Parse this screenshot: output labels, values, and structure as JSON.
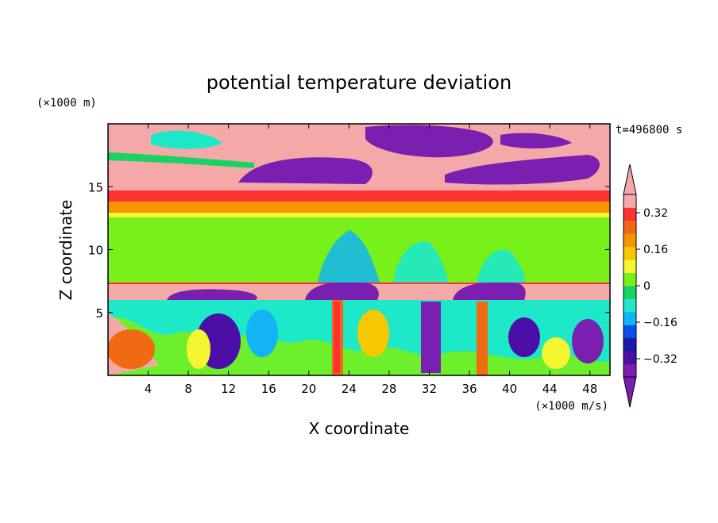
{
  "chart_data": {
    "type": "heatmap",
    "title": "potential temperature deviation",
    "xlabel": "X coordinate",
    "ylabel": "Z coordinate",
    "x_unit": "(×1000 m/s)",
    "y_unit": "(×1000 m)",
    "time_label": "t=496800 s",
    "xlim": [
      0,
      50
    ],
    "ylim": [
      0,
      20
    ],
    "x_ticks": [
      4,
      8,
      12,
      16,
      20,
      24,
      28,
      32,
      36,
      40,
      44,
      48
    ],
    "y_ticks": [
      5,
      10,
      15
    ],
    "colorbar": {
      "colors": [
        "#7a1fb0",
        "#4b0fa8",
        "#1a1aa8",
        "#0a4ef0",
        "#12b4f5",
        "#1de8c8",
        "#18d264",
        "#78f01a",
        "#f5f532",
        "#f5c800",
        "#f59600",
        "#f06a14",
        "#ff3232",
        "#f5a8a8"
      ],
      "tick_labels": [
        "0.32",
        "0.16",
        "0",
        "−0.16",
        "−0.32"
      ],
      "tick_values": [
        0.32,
        0.16,
        0,
        -0.16,
        -0.32
      ],
      "range": [
        -0.4,
        0.4
      ],
      "extend": "both"
    }
  }
}
